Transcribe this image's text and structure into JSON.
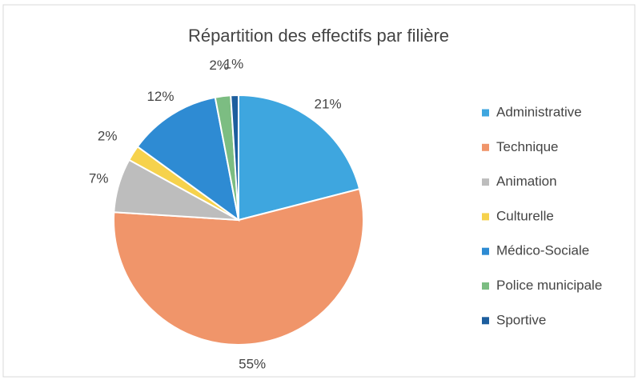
{
  "chart_data": {
    "type": "pie",
    "title": "Répartition des effectifs par filière",
    "categories": [
      "Administrative",
      "Technique",
      "Animation",
      "Culturelle",
      "Médico-Sociale",
      "Police municipale",
      "Sportive"
    ],
    "values": [
      21,
      55,
      7,
      2,
      12,
      2,
      1
    ],
    "value_labels": [
      "21%",
      "55%",
      "7%",
      "2%",
      "12%",
      "2%",
      "1%"
    ],
    "colors": [
      "#3ea6df",
      "#f0956a",
      "#bdbdbd",
      "#f6d24c",
      "#2e8bd3",
      "#7cbd82",
      "#1d5e9e"
    ],
    "legend": "right"
  }
}
